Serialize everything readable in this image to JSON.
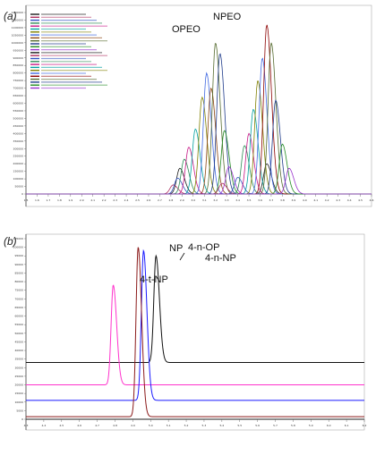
{
  "chart_data": [
    {
      "panel": "(a)",
      "type": "line",
      "annotations": [
        "OPEO",
        "NPEO"
      ],
      "xlim": [
        1.5,
        4.6
      ],
      "x_ticks": [
        "1.5",
        "1.6",
        "1.7",
        "1.8",
        "1.9",
        "2.0",
        "2.1",
        "2.2",
        "2.3",
        "2.4",
        "2.5",
        "2.6",
        "2.7",
        "2.8",
        "2.9",
        "3.0",
        "3.1",
        "3.2",
        "3.3",
        "3.4",
        "3.5",
        "3.6",
        "3.7",
        "3.8",
        "3.9",
        "4.0",
        "4.1",
        "4.2",
        "4.3",
        "4.4",
        "4.5",
        "4.6"
      ],
      "ylim": [
        0,
        1200000
      ],
      "y_ticks": [
        "0",
        "50000",
        "100000",
        "150000",
        "200000",
        "250000",
        "300000",
        "350000",
        "400000",
        "450000",
        "500000",
        "550000",
        "600000",
        "650000",
        "700000",
        "750000",
        "800000",
        "850000",
        "900000",
        "950000",
        "1000000",
        "1050000",
        "1100000",
        "1150000",
        "1200000"
      ],
      "series": [
        {
          "group": "OPEO",
          "color": "#1a1a1a",
          "peak_x": 2.88,
          "peak_y": 170000
        },
        {
          "group": "OPEO",
          "color": "#b03060",
          "peak_x": 2.82,
          "peak_y": 60000
        },
        {
          "group": "OPEO",
          "color": "#3050c0",
          "peak_x": 2.86,
          "peak_y": 105000
        },
        {
          "group": "OPEO",
          "color": "#2e8b57",
          "peak_x": 2.92,
          "peak_y": 230000
        },
        {
          "group": "OPEO",
          "color": "#c71585",
          "peak_x": 2.96,
          "peak_y": 310000
        },
        {
          "group": "OPEO",
          "color": "#00a0a0",
          "peak_x": 3.02,
          "peak_y": 430000
        },
        {
          "group": "OPEO",
          "color": "#808000",
          "peak_x": 3.08,
          "peak_y": 640000
        },
        {
          "group": "OPEO",
          "color": "#4169e1",
          "peak_x": 3.12,
          "peak_y": 800000
        },
        {
          "group": "OPEO",
          "color": "#8b4513",
          "peak_x": 3.16,
          "peak_y": 700000
        },
        {
          "group": "OPEO",
          "color": "#556b2f",
          "peak_x": 3.2,
          "peak_y": 1000000
        },
        {
          "group": "OPEO",
          "color": "#1e3a8a",
          "peak_x": 3.24,
          "peak_y": 930000
        },
        {
          "group": "OPEO",
          "color": "#228b22",
          "peak_x": 3.28,
          "peak_y": 420000
        },
        {
          "group": "OPEO",
          "color": "#9932cc",
          "peak_x": 3.32,
          "peak_y": 180000
        },
        {
          "group": "NPEO",
          "color": "#1a1a1a",
          "peak_x": 3.66,
          "peak_y": 200000
        },
        {
          "group": "NPEO",
          "color": "#b03060",
          "peak_x": 3.26,
          "peak_y": 70000
        },
        {
          "group": "NPEO",
          "color": "#3050c0",
          "peak_x": 3.4,
          "peak_y": 110000
        },
        {
          "group": "NPEO",
          "color": "#2e8b57",
          "peak_x": 3.46,
          "peak_y": 320000
        },
        {
          "group": "NPEO",
          "color": "#c71585",
          "peak_x": 3.5,
          "peak_y": 400000
        },
        {
          "group": "NPEO",
          "color": "#00a0a0",
          "peak_x": 3.54,
          "peak_y": 560000
        },
        {
          "group": "NPEO",
          "color": "#808000",
          "peak_x": 3.58,
          "peak_y": 750000
        },
        {
          "group": "NPEO",
          "color": "#4169e1",
          "peak_x": 3.62,
          "peak_y": 900000
        },
        {
          "group": "NPEO",
          "color": "#8b0000",
          "peak_x": 3.66,
          "peak_y": 1120000
        },
        {
          "group": "NPEO",
          "color": "#556b2f",
          "peak_x": 3.7,
          "peak_y": 1000000
        },
        {
          "group": "NPEO",
          "color": "#1e3a8a",
          "peak_x": 3.74,
          "peak_y": 620000
        },
        {
          "group": "NPEO",
          "color": "#228b22",
          "peak_x": 3.8,
          "peak_y": 330000
        },
        {
          "group": "NPEO",
          "color": "#9932cc",
          "peak_x": 3.86,
          "peak_y": 170000
        }
      ]
    },
    {
      "panel": "(b)",
      "type": "line",
      "annotations": [
        "NP",
        "4-n-OP",
        "4-n-NP",
        "4-t-NP"
      ],
      "xlim": [
        4.3,
        6.2
      ],
      "x_ticks": [
        "4.3",
        "4.4",
        "4.5",
        "4.6",
        "4.7",
        "4.8",
        "4.9",
        "5.0",
        "5.1",
        "5.2",
        "5.3",
        "5.4",
        "5.5",
        "5.6",
        "5.7",
        "5.8",
        "5.9",
        "6.0",
        "6.1",
        "6.2"
      ],
      "ylim": [
        0,
        105000
      ],
      "y_ticks": [
        "0",
        "5000",
        "10000",
        "15000",
        "20000",
        "25000",
        "30000",
        "35000",
        "40000",
        "45000",
        "50000",
        "55000",
        "60000",
        "65000",
        "70000",
        "75000",
        "80000",
        "85000",
        "90000",
        "95000",
        "100000",
        "105000"
      ],
      "series": [
        {
          "label": "4-n-NP",
          "color": "#111111",
          "baseline": 33000,
          "peak_x": 5.03,
          "peak_y": 95000
        },
        {
          "label": "4-t-NP",
          "color": "#ff33cc",
          "baseline": 20000,
          "peak_x": 4.79,
          "peak_y": 78000
        },
        {
          "label": "4-n-OP",
          "color": "#1a1aff",
          "baseline": 11000,
          "peak_x": 4.96,
          "peak_y": 98000
        },
        {
          "label": "NP",
          "color": "#8b1a1a",
          "baseline": 1500,
          "peak_x": 4.93,
          "peak_y": 100000
        }
      ]
    }
  ]
}
